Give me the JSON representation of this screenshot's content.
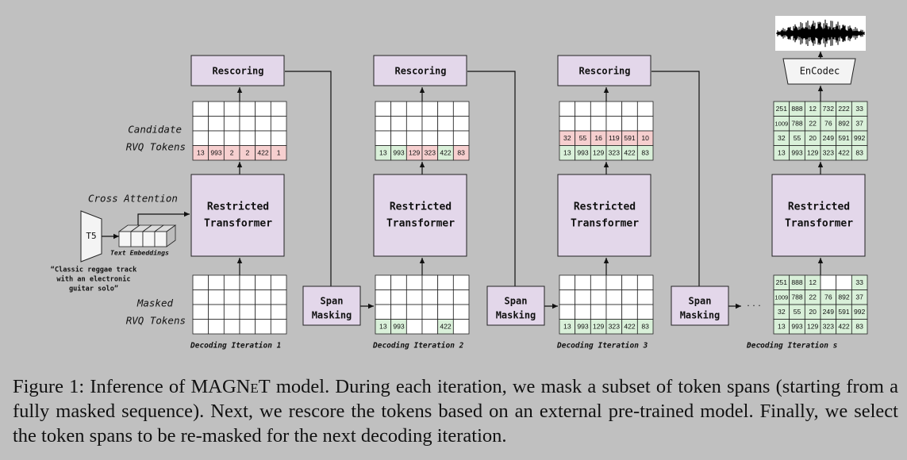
{
  "labels": {
    "rescoring": "Rescoring",
    "transformer_line1": "Restricted",
    "transformer_line2": "Transformer",
    "span_line1": "Span",
    "span_line2": "Masking",
    "encodec": "EnCodec",
    "t5": "T5",
    "text_embeddings": "Text Embeddings",
    "cross_attention": "Cross Attention",
    "candidate_line1": "Candidate",
    "candidate_line2": "RVQ Tokens",
    "masked_line1": "Masked",
    "masked_line2": "RVQ Tokens",
    "prompt_line1": "“Classic reggae track",
    "prompt_line2": "with an electronic",
    "prompt_line3": "guitar solo”",
    "ellipsis": "· · ·"
  },
  "iterations": [
    {
      "label": "Decoding Iteration 1",
      "candidate": [
        [
          "",
          "",
          "",
          "",
          "",
          ""
        ],
        [
          "",
          "",
          "",
          "",
          "",
          ""
        ],
        [
          "",
          "",
          "",
          "",
          "",
          ""
        ],
        [
          "13",
          "993",
          "2",
          "2",
          "422",
          "1"
        ]
      ],
      "candidate_state": [
        [
          "e",
          "e",
          "e",
          "e",
          "e",
          "e"
        ],
        [
          "e",
          "e",
          "e",
          "e",
          "e",
          "e"
        ],
        [
          "e",
          "e",
          "e",
          "e",
          "e",
          "e"
        ],
        [
          "r",
          "r",
          "r",
          "r",
          "r",
          "r"
        ]
      ],
      "masked": [
        [
          "",
          "",
          "",
          "",
          "",
          ""
        ],
        [
          "",
          "",
          "",
          "",
          "",
          ""
        ],
        [
          "",
          "",
          "",
          "",
          "",
          ""
        ],
        [
          "",
          "",
          "",
          "",
          "",
          ""
        ]
      ],
      "masked_state": [
        [
          "e",
          "e",
          "e",
          "e",
          "e",
          "e"
        ],
        [
          "e",
          "e",
          "e",
          "e",
          "e",
          "e"
        ],
        [
          "e",
          "e",
          "e",
          "e",
          "e",
          "e"
        ],
        [
          "e",
          "e",
          "e",
          "e",
          "e",
          "e"
        ]
      ]
    },
    {
      "label": "Decoding Iteration 2",
      "candidate": [
        [
          "",
          "",
          "",
          "",
          "",
          ""
        ],
        [
          "",
          "",
          "",
          "",
          "",
          ""
        ],
        [
          "",
          "",
          "",
          "",
          "",
          ""
        ],
        [
          "13",
          "993",
          "129",
          "323",
          "422",
          "83"
        ]
      ],
      "candidate_state": [
        [
          "e",
          "e",
          "e",
          "e",
          "e",
          "e"
        ],
        [
          "e",
          "e",
          "e",
          "e",
          "e",
          "e"
        ],
        [
          "e",
          "e",
          "e",
          "e",
          "e",
          "e"
        ],
        [
          "g",
          "g",
          "r",
          "r",
          "g",
          "r"
        ]
      ],
      "masked": [
        [
          "",
          "",
          "",
          "",
          "",
          ""
        ],
        [
          "",
          "",
          "",
          "",
          "",
          ""
        ],
        [
          "",
          "",
          "",
          "",
          "",
          ""
        ],
        [
          "13",
          "993",
          "",
          "",
          "422",
          ""
        ]
      ],
      "masked_state": [
        [
          "e",
          "e",
          "e",
          "e",
          "e",
          "e"
        ],
        [
          "e",
          "e",
          "e",
          "e",
          "e",
          "e"
        ],
        [
          "e",
          "e",
          "e",
          "e",
          "e",
          "e"
        ],
        [
          "g",
          "g",
          "e",
          "e",
          "g",
          "e"
        ]
      ]
    },
    {
      "label": "Decoding Iteration 3",
      "candidate": [
        [
          "",
          "",
          "",
          "",
          "",
          ""
        ],
        [
          "",
          "",
          "",
          "",
          "",
          ""
        ],
        [
          "32",
          "55",
          "16",
          "119",
          "591",
          "10"
        ],
        [
          "13",
          "993",
          "129",
          "323",
          "422",
          "83"
        ]
      ],
      "candidate_state": [
        [
          "e",
          "e",
          "e",
          "e",
          "e",
          "e"
        ],
        [
          "e",
          "e",
          "e",
          "e",
          "e",
          "e"
        ],
        [
          "r",
          "r",
          "r",
          "r",
          "r",
          "r"
        ],
        [
          "g",
          "g",
          "g",
          "g",
          "g",
          "g"
        ]
      ],
      "masked": [
        [
          "",
          "",
          "",
          "",
          "",
          ""
        ],
        [
          "",
          "",
          "",
          "",
          "",
          ""
        ],
        [
          "",
          "",
          "",
          "",
          "",
          ""
        ],
        [
          "13",
          "993",
          "129",
          "323",
          "422",
          "83"
        ]
      ],
      "masked_state": [
        [
          "e",
          "e",
          "e",
          "e",
          "e",
          "e"
        ],
        [
          "e",
          "e",
          "e",
          "e",
          "e",
          "e"
        ],
        [
          "e",
          "e",
          "e",
          "e",
          "e",
          "e"
        ],
        [
          "g",
          "g",
          "g",
          "g",
          "g",
          "g"
        ]
      ]
    },
    {
      "label": "Decoding Iteration s",
      "candidate": [
        [
          "251",
          "888",
          "12",
          "732",
          "222",
          "33"
        ],
        [
          "1009",
          "788",
          "22",
          "76",
          "892",
          "37"
        ],
        [
          "32",
          "55",
          "20",
          "249",
          "591",
          "992"
        ],
        [
          "13",
          "993",
          "129",
          "323",
          "422",
          "83"
        ]
      ],
      "candidate_state": [
        [
          "g",
          "g",
          "g",
          "g",
          "g",
          "g"
        ],
        [
          "g",
          "g",
          "g",
          "g",
          "g",
          "g"
        ],
        [
          "g",
          "g",
          "g",
          "g",
          "g",
          "g"
        ],
        [
          "g",
          "g",
          "g",
          "g",
          "g",
          "g"
        ]
      ],
      "masked": [
        [
          "251",
          "888",
          "12",
          "",
          "",
          "33"
        ],
        [
          "1009",
          "788",
          "22",
          "76",
          "892",
          "37"
        ],
        [
          "32",
          "55",
          "20",
          "249",
          "591",
          "992"
        ],
        [
          "13",
          "993",
          "129",
          "323",
          "422",
          "83"
        ]
      ],
      "masked_state": [
        [
          "g",
          "g",
          "g",
          "e",
          "e",
          "g"
        ],
        [
          "g",
          "g",
          "g",
          "g",
          "g",
          "g"
        ],
        [
          "g",
          "g",
          "g",
          "g",
          "g",
          "g"
        ],
        [
          "g",
          "g",
          "g",
          "g",
          "g",
          "g"
        ]
      ]
    }
  ],
  "caption": {
    "prefix": "Figure 1: Inference of ",
    "model_name": "MAGNeT",
    "text": " model. During each iteration, we mask a subset of token spans (starting from a fully masked sequence). Next, we rescore the tokens based on an external pre-trained model. Finally, we select the token spans to be re-masked for the next decoding iteration."
  },
  "colors": {
    "box_fill": "#e3d7ea",
    "token_red": "#f6cfcf",
    "token_green": "#d9f0d9",
    "token_empty": "#ffffff",
    "background": "#c0c0c0"
  }
}
